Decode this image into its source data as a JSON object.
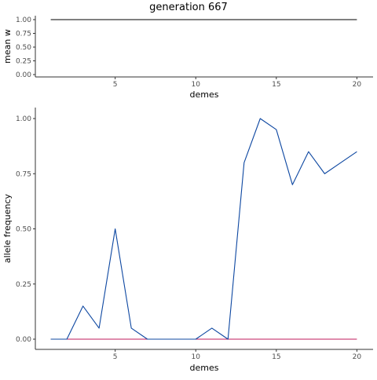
{
  "title": "generation 667",
  "colors": {
    "axis": "#333333",
    "blue_series": "#0d47a1",
    "red_series": "#c2185b",
    "black_series": "#000000"
  },
  "chart_data": [
    {
      "type": "line",
      "xlabel": "demes",
      "ylabel": "mean w",
      "xlim": [
        1,
        20
      ],
      "ylim": [
        0,
        1
      ],
      "x_ticks": [
        5,
        10,
        15,
        20
      ],
      "y_ticks": [
        "0.00",
        "0.25",
        "0.50",
        "0.75",
        "1.00"
      ],
      "grid": false,
      "series": [
        {
          "color_key": "black_series",
          "x": [
            1,
            2,
            3,
            4,
            5,
            6,
            7,
            8,
            9,
            10,
            11,
            12,
            13,
            14,
            15,
            16,
            17,
            18,
            19,
            20
          ],
          "values": [
            1,
            1,
            1,
            1,
            1,
            1,
            1,
            1,
            1,
            1,
            1,
            1,
            1,
            1,
            1,
            1,
            1,
            1,
            1,
            1
          ]
        }
      ]
    },
    {
      "type": "line",
      "xlabel": "demes",
      "ylabel": "allele frequency",
      "xlim": [
        1,
        20
      ],
      "ylim": [
        0,
        1
      ],
      "x_ticks": [
        5,
        10,
        15,
        20
      ],
      "y_ticks": [
        "0.00",
        "0.25",
        "0.50",
        "0.75",
        "1.00"
      ],
      "grid": false,
      "series": [
        {
          "color_key": "red_series",
          "x": [
            1,
            2,
            3,
            4,
            5,
            6,
            7,
            8,
            9,
            10,
            11,
            12,
            13,
            14,
            15,
            16,
            17,
            18,
            19,
            20
          ],
          "values": [
            0,
            0,
            0,
            0,
            0,
            0,
            0,
            0,
            0,
            0,
            0,
            0,
            0,
            0,
            0,
            0,
            0,
            0,
            0,
            0
          ]
        },
        {
          "color_key": "blue_series",
          "x": [
            1,
            2,
            3,
            4,
            5,
            6,
            7,
            8,
            9,
            10,
            11,
            12,
            13,
            14,
            15,
            16,
            17,
            18,
            19,
            20
          ],
          "values": [
            0,
            0,
            0.15,
            0.05,
            0.5,
            0.05,
            0,
            0,
            0,
            0,
            0.05,
            0,
            0.8,
            1,
            0.95,
            0.7,
            0.85,
            0.75,
            0.8,
            0.85
          ]
        }
      ]
    }
  ]
}
